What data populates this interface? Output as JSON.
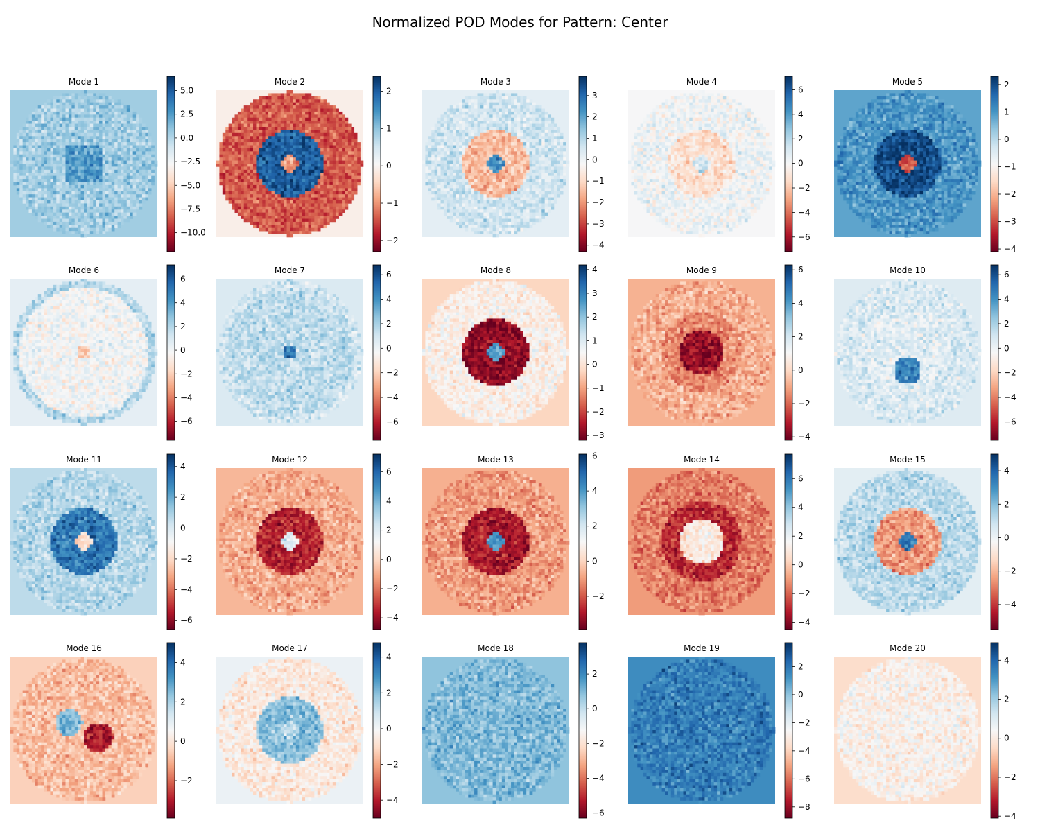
{
  "figure": {
    "title": "Normalized POD Modes for Pattern: Center"
  },
  "colors": {
    "colormap": "RdBu",
    "stops": [
      "#67001f",
      "#b2182b",
      "#d6604d",
      "#f4a582",
      "#fddbc7",
      "#f7f7f7",
      "#d1e5f0",
      "#92c5de",
      "#4393c3",
      "#2166ac",
      "#053061"
    ]
  },
  "chart_data": [
    {
      "type": "heatmap",
      "title": "Mode 1",
      "vmin": -12.0,
      "vmax": 6.5,
      "ticks": [
        "5.0",
        "2.5",
        "0.0",
        "−2.5",
        "−5.0",
        "−7.5",
        "−10.0"
      ],
      "tick_values": [
        5.0,
        2.5,
        0.0,
        -2.5,
        -5.0,
        -7.5,
        -10.0
      ],
      "background": 0.5,
      "structure": "center_square",
      "center_value": 2.5
    },
    {
      "type": "heatmap",
      "title": "Mode 2",
      "vmin": -2.3,
      "vmax": 2.4,
      "ticks": [
        "2",
        "1",
        "0",
        "−1",
        "−2"
      ],
      "tick_values": [
        2,
        1,
        0,
        -1,
        -2
      ],
      "background": -0.1,
      "structure": "ring",
      "center_value": -1.0,
      "ring_value": 2.0,
      "outer_value": -1.4
    },
    {
      "type": "heatmap",
      "title": "Mode 3",
      "vmin": -4.3,
      "vmax": 3.9,
      "ticks": [
        "3",
        "2",
        "1",
        "0",
        "−1",
        "−2",
        "−3",
        "−4"
      ],
      "tick_values": [
        3,
        2,
        1,
        0,
        -1,
        -2,
        -3,
        -4
      ],
      "background": 0.2,
      "structure": "ring",
      "center_value": 2.5,
      "ring_value": -1.5,
      "outer_value": 0.6
    },
    {
      "type": "heatmap",
      "title": "Mode 4",
      "vmin": -7.2,
      "vmax": 7.1,
      "ticks": [
        "6",
        "4",
        "2",
        "0",
        "−2",
        "−4",
        "−6"
      ],
      "tick_values": [
        6,
        4,
        2,
        0,
        -2,
        -4,
        -6
      ],
      "background": 0.0,
      "structure": "ring",
      "center_value": 1.5,
      "ring_value": -1.2,
      "outer_value": 0.3
    },
    {
      "type": "heatmap",
      "title": "Mode 5",
      "vmin": -4.1,
      "vmax": 2.3,
      "ticks": [
        "2",
        "1",
        "0",
        "−1",
        "−2",
        "−3",
        "−4"
      ],
      "tick_values": [
        2,
        1,
        0,
        -1,
        -2,
        -3,
        -4
      ],
      "background": 0.8,
      "structure": "ring",
      "center_value": -3.0,
      "ring_value": 2.0,
      "outer_value": 1.0
    },
    {
      "type": "heatmap",
      "title": "Mode 6",
      "vmin": -7.6,
      "vmax": 7.2,
      "ticks": [
        "6",
        "4",
        "2",
        "0",
        "−2",
        "−4",
        "−6"
      ],
      "tick_values": [
        6,
        4,
        2,
        0,
        -2,
        -4,
        -6
      ],
      "background": 0.5,
      "structure": "noise_edge",
      "center_value": -2.0,
      "ring_value": 0.0,
      "outer_value": 2.0
    },
    {
      "type": "heatmap",
      "title": "Mode 7",
      "vmin": -7.5,
      "vmax": 6.8,
      "ticks": [
        "6",
        "4",
        "2",
        "0",
        "−2",
        "−4",
        "−6"
      ],
      "tick_values": [
        6,
        4,
        2,
        0,
        -2,
        -4,
        -6
      ],
      "background": 0.7,
      "structure": "noise_edge",
      "center_value": 5.0,
      "ring_value": 1.5,
      "outer_value": 1.0
    },
    {
      "type": "heatmap",
      "title": "Mode 8",
      "vmin": -3.2,
      "vmax": 4.2,
      "ticks": [
        "4",
        "3",
        "2",
        "1",
        "0",
        "−1",
        "−2",
        "−3"
      ],
      "tick_values": [
        4,
        3,
        2,
        1,
        0,
        -1,
        -2,
        -3
      ],
      "background": -0.3,
      "structure": "ring",
      "center_value": 2.5,
      "ring_value": -2.8,
      "outer_value": 0.3
    },
    {
      "type": "heatmap",
      "title": "Mode 9",
      "vmin": -4.2,
      "vmax": 6.3,
      "ticks": [
        "6",
        "4",
        "2",
        "0",
        "−2",
        "−4"
      ],
      "tick_values": [
        6,
        4,
        2,
        0,
        -2,
        -4
      ],
      "background": -0.8,
      "structure": "blob",
      "center_value": -3.5,
      "ring_value": -1.5,
      "outer_value": -0.8
    },
    {
      "type": "heatmap",
      "title": "Mode 10",
      "vmin": -7.5,
      "vmax": 6.8,
      "ticks": [
        "6",
        "4",
        "2",
        "0",
        "−2",
        "−4",
        "−6"
      ],
      "tick_values": [
        6,
        4,
        2,
        0,
        -2,
        -4,
        -6
      ],
      "background": 0.6,
      "structure": "bottom_blob",
      "center_value": 4.5,
      "ring_value": 0.5,
      "outer_value": 0.8
    },
    {
      "type": "heatmap",
      "title": "Mode 11",
      "vmin": -6.6,
      "vmax": 4.8,
      "ticks": [
        "4",
        "2",
        "0",
        "−2",
        "−4",
        "−6"
      ],
      "tick_values": [
        4,
        2,
        0,
        -2,
        -4,
        -6
      ],
      "background": 0.6,
      "structure": "ring",
      "center_value": -2.0,
      "ring_value": 3.2,
      "outer_value": 0.8
    },
    {
      "type": "heatmap",
      "title": "Mode 12",
      "vmin": -4.8,
      "vmax": 7.2,
      "ticks": [
        "6",
        "4",
        "2",
        "0",
        "−2",
        "−4"
      ],
      "tick_values": [
        6,
        4,
        2,
        0,
        -2,
        -4
      ],
      "background": -0.8,
      "structure": "ring",
      "center_value": 2.0,
      "ring_value": -3.5,
      "outer_value": -1.0
    },
    {
      "type": "heatmap",
      "title": "Mode 13",
      "vmin": -3.9,
      "vmax": 6.1,
      "ticks": [
        "6",
        "4",
        "2",
        "0",
        "−2"
      ],
      "tick_values": [
        6,
        4,
        2,
        0,
        -2
      ],
      "background": -0.7,
      "structure": "ring",
      "center_value": 4.0,
      "ring_value": -3.0,
      "outer_value": -1.0
    },
    {
      "type": "heatmap",
      "title": "Mode 14",
      "vmin": -4.5,
      "vmax": 7.7,
      "ticks": [
        "6",
        "4",
        "2",
        "0",
        "−2",
        "−4"
      ],
      "tick_values": [
        6,
        4,
        2,
        0,
        -2,
        -4
      ],
      "background": -1.0,
      "structure": "blob",
      "center_value": 1.0,
      "ring_value": -3.0,
      "outer_value": -1.5
    },
    {
      "type": "heatmap",
      "title": "Mode 15",
      "vmin": -5.5,
      "vmax": 5.0,
      "ticks": [
        "4",
        "2",
        "0",
        "−2",
        "−4"
      ],
      "tick_values": [
        4,
        2,
        0,
        -2,
        -4
      ],
      "background": 0.3,
      "structure": "ring",
      "center_value": 3.5,
      "ring_value": -2.5,
      "outer_value": 1.2
    },
    {
      "type": "heatmap",
      "title": "Mode 16",
      "vmin": -3.9,
      "vmax": 5.0,
      "ticks": [
        "4",
        "2",
        "0",
        "−2"
      ],
      "tick_values": [
        4,
        2,
        0,
        -2
      ],
      "background": -0.5,
      "structure": "offset_blob",
      "center_value": -3.0,
      "ring_value": 2.5,
      "outer_value": -0.8
    },
    {
      "type": "heatmap",
      "title": "Mode 17",
      "vmin": -5.0,
      "vmax": 4.8,
      "ticks": [
        "4",
        "2",
        "0",
        "−2",
        "−4"
      ],
      "tick_values": [
        4,
        2,
        0,
        -2,
        -4
      ],
      "background": 0.2,
      "structure": "ring",
      "center_value": 1.0,
      "ring_value": 2.0,
      "outer_value": -0.6
    },
    {
      "type": "heatmap",
      "title": "Mode 18",
      "vmin": -6.3,
      "vmax": 3.8,
      "ticks": [
        "2",
        "0",
        "−2",
        "−4",
        "−6"
      ],
      "tick_values": [
        2,
        0,
        -2,
        -4,
        -6
      ],
      "background": 0.8,
      "structure": "noise",
      "center_value": 1.0,
      "ring_value": 0.5,
      "outer_value": 1.0
    },
    {
      "type": "heatmap",
      "title": "Mode 19",
      "vmin": -8.8,
      "vmax": 3.7,
      "ticks": [
        "2",
        "0",
        "−2",
        "−4",
        "−6",
        "−8"
      ],
      "tick_values": [
        2,
        0,
        -2,
        -4,
        -6,
        -8
      ],
      "background": 1.4,
      "structure": "noise",
      "center_value": 1.8,
      "ring_value": 1.5,
      "outer_value": 1.6
    },
    {
      "type": "heatmap",
      "title": "Mode 20",
      "vmin": -4.1,
      "vmax": 4.9,
      "ticks": [
        "4",
        "2",
        "0",
        "−2",
        "−4"
      ],
      "tick_values": [
        4,
        2,
        0,
        -2,
        -4
      ],
      "background": -0.4,
      "structure": "noise",
      "center_value": 0.2,
      "ring_value": -0.8,
      "outer_value": 0.3
    }
  ]
}
